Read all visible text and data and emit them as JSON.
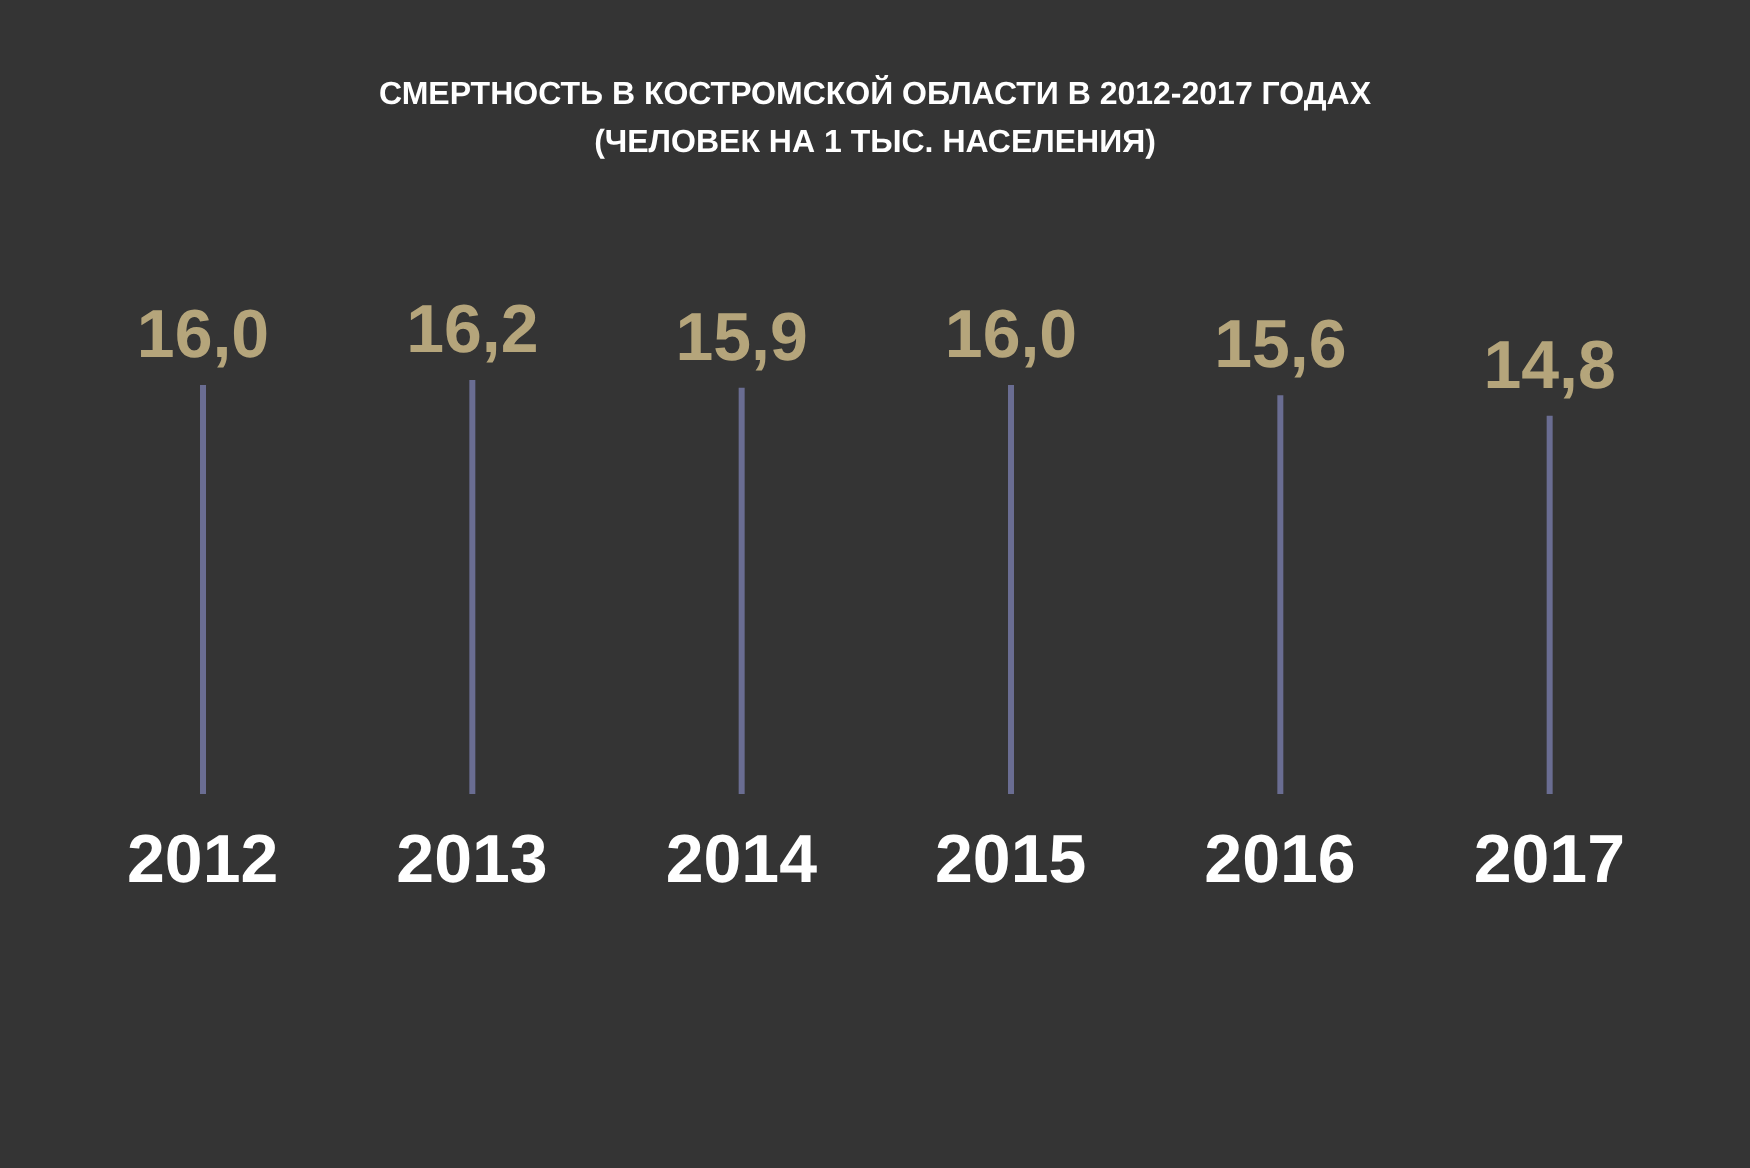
{
  "chart_data": {
    "type": "bar",
    "title": "СМЕРТНОСТЬ В КОСТРОМСКОЙ ОБЛАСТИ В 2012-2017 ГОДАХ",
    "subtitle": "(ЧЕЛОВЕК НА 1 ТЫС. НАСЕЛЕНИЯ)",
    "categories": [
      "2012",
      "2013",
      "2014",
      "2015",
      "2016",
      "2017"
    ],
    "values": [
      16.0,
      16.2,
      15.9,
      16.0,
      15.6,
      14.8
    ],
    "value_labels": [
      "16,0",
      "16,2",
      "15,9",
      "16,0",
      "15,6",
      "14,8"
    ],
    "color": "#6a6d92",
    "tick_labels": "x"
  }
}
